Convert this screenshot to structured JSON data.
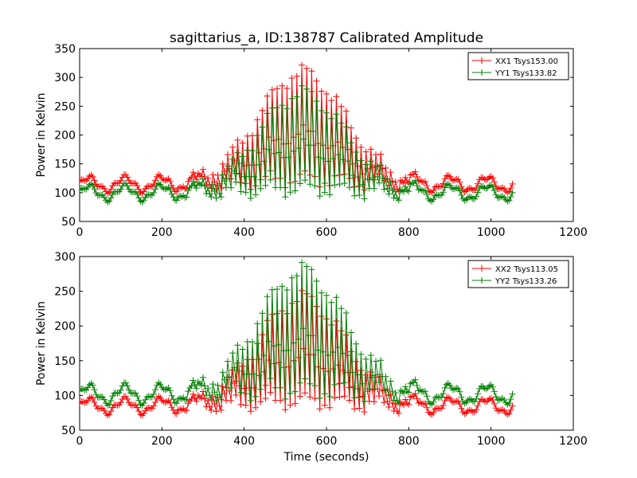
{
  "chart_data": {
    "type": "line",
    "title": "sagittarius_a, ID:138787 Calibrated Amplitude",
    "xlabel": "Time (seconds)",
    "panels": [
      {
        "ylabel": "Power in Kelvin",
        "xlim": [
          0,
          1200
        ],
        "ylim": [
          50,
          350
        ],
        "xticks": [
          "0",
          "200",
          "400",
          "600",
          "800",
          "1000",
          "1200"
        ],
        "yticks": [
          "50",
          "100",
          "150",
          "200",
          "250",
          "300",
          "350"
        ],
        "legend_position": "top-right",
        "series": [
          {
            "name": "XX1 Tsys153.00",
            "color": "#ff0000",
            "baseline": 115,
            "ripple": 12,
            "peak": 308,
            "peak_x": 540,
            "peak_width": 105,
            "x_start": 0,
            "x_end": 1055
          },
          {
            "name": "YY1 Tsys133.82",
            "color": "#008000",
            "baseline": 100,
            "ripple": 12,
            "peak": 272,
            "peak_x": 540,
            "peak_width": 105,
            "x_start": 0,
            "x_end": 1055
          }
        ]
      },
      {
        "ylabel": "Power in Kelvin",
        "xlim": [
          0,
          1200
        ],
        "ylim": [
          50,
          300
        ],
        "xticks": [
          "0",
          "200",
          "400",
          "600",
          "800",
          "1000",
          "1200"
        ],
        "yticks": [
          "50",
          "100",
          "150",
          "200",
          "250",
          "300"
        ],
        "legend_position": "top-right",
        "series": [
          {
            "name": "XX2 Tsys113.05",
            "color": "#ff0000",
            "baseline": 85,
            "ripple": 10,
            "peak": 240,
            "peak_x": 540,
            "peak_width": 105,
            "x_start": 0,
            "x_end": 1055
          },
          {
            "name": "YY2 Tsys133.26",
            "color": "#008000",
            "baseline": 102,
            "ripple": 12,
            "peak": 278,
            "peak_x": 540,
            "peak_width": 105,
            "x_start": 0,
            "x_end": 1055
          }
        ]
      }
    ]
  }
}
